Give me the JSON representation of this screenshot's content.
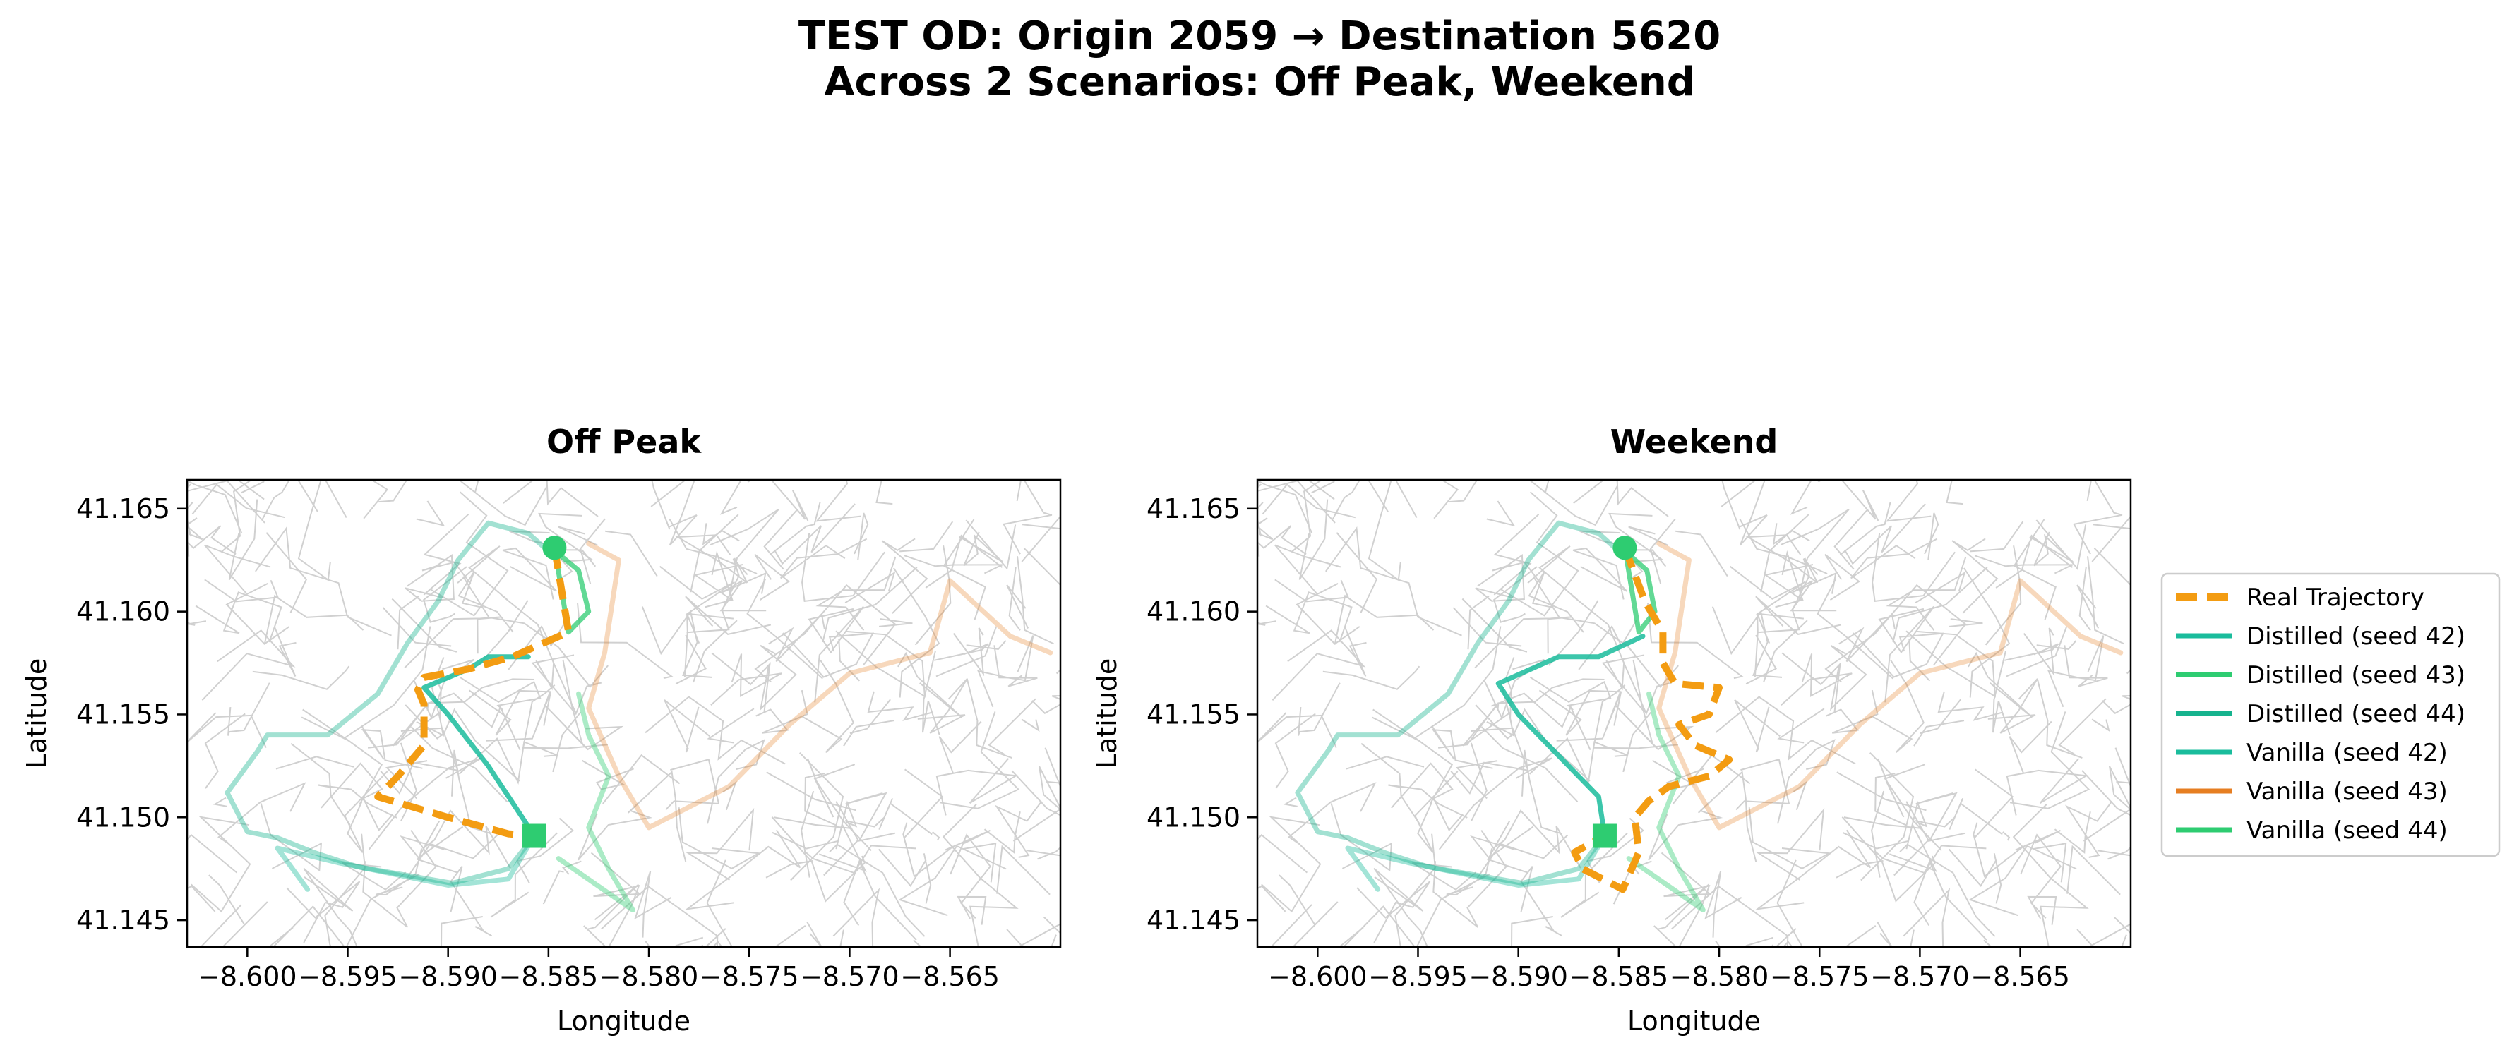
{
  "figure": {
    "title_line1": "TEST OD: Origin 2059 → Destination 5620",
    "title_line2": "Across 2 Scenarios: Off Peak, Weekend"
  },
  "colors": {
    "real": "#F39C12",
    "distilled_42": "#1ABC9C",
    "distilled_43": "#2ECC71",
    "distilled_44": "#16B38E",
    "vanilla_42": "#1ABC9C",
    "vanilla_43": "#E67E22",
    "vanilla_44": "#2ECC71",
    "origin": "#2ECC71",
    "destination": "#2ECC71",
    "road": "#BDBDBD"
  },
  "chart_data": [
    {
      "type": "line",
      "title": "Off Peak",
      "xlabel": "Longitude",
      "ylabel": "Latitude",
      "xlim": [
        -8.603,
        -8.5595
      ],
      "ylim": [
        41.1437,
        41.1664
      ],
      "xticks": [
        -8.6,
        -8.595,
        -8.59,
        -8.585,
        -8.58,
        -8.575,
        -8.57,
        -8.565
      ],
      "xticklabels": [
        "−8.600",
        "−8.595",
        "−8.590",
        "−8.585",
        "−8.580",
        "−8.575",
        "−8.570",
        "−8.565"
      ],
      "yticks": [
        41.145,
        41.15,
        41.155,
        41.16,
        41.165
      ],
      "yticklabels": [
        "41.145",
        "41.150",
        "41.155",
        "41.160",
        "41.165"
      ],
      "grid": false,
      "origin": {
        "lon": -8.5847,
        "lat": 41.1631
      },
      "destination": {
        "lon": -8.5857,
        "lat": 41.1491
      },
      "series": [
        {
          "key": "real",
          "style": "dashed",
          "points": [
            [
              -8.5847,
              41.1631
            ],
            [
              -8.584,
              41.159
            ],
            [
              -8.5868,
              41.1578
            ],
            [
              -8.589,
              41.1572
            ],
            [
              -8.5912,
              41.1568
            ],
            [
              -8.5915,
              41.1562
            ],
            [
              -8.5912,
              41.1555
            ],
            [
              -8.5912,
              41.1535
            ],
            [
              -8.5925,
              41.152
            ],
            [
              -8.5935,
              41.151
            ],
            [
              -8.59,
              41.15
            ],
            [
              -8.587,
              41.1492
            ],
            [
              -8.5857,
              41.1491
            ]
          ]
        },
        {
          "key": "distilled_42",
          "style": "solid",
          "points": [
            [
              -8.5857,
              41.1491
            ],
            [
              -8.588,
              41.1525
            ],
            [
              -8.59,
              41.155
            ],
            [
              -8.5912,
              41.1563
            ],
            [
              -8.589,
              41.1572
            ],
            [
              -8.588,
              41.1578
            ],
            [
              -8.586,
              41.1578
            ]
          ]
        },
        {
          "key": "distilled_43",
          "style": "solid",
          "points": [
            [
              -8.5847,
              41.1631
            ],
            [
              -8.584,
              41.159
            ],
            [
              -8.583,
              41.16
            ],
            [
              -8.5835,
              41.162
            ],
            [
              -8.585,
              41.1632
            ]
          ]
        },
        {
          "key": "distilled_44",
          "style": "solid",
          "points": [
            [
              -8.5857,
              41.1491
            ],
            [
              -8.587,
              41.1475
            ],
            [
              -8.5898,
              41.1468
            ],
            [
              -8.5945,
              41.1476
            ],
            [
              -8.5967,
              41.1483
            ],
            [
              -8.5985,
              41.149
            ],
            [
              -8.6,
              41.1493
            ],
            [
              -8.601,
              41.1512
            ],
            [
              -8.5995,
              41.1532
            ],
            [
              -8.599,
              41.154
            ],
            [
              -8.596,
              41.154
            ],
            [
              -8.5935,
              41.156
            ],
            [
              -8.592,
              41.1585
            ],
            [
              -8.5905,
              41.1605
            ],
            [
              -8.5895,
              41.1625
            ],
            [
              -8.588,
              41.1643
            ],
            [
              -8.586,
              41.1638
            ],
            [
              -8.5852,
              41.1631
            ]
          ]
        },
        {
          "key": "vanilla_42",
          "style": "solid",
          "points": [
            [
              -8.5857,
              41.1491
            ],
            [
              -8.587,
              41.147
            ],
            [
              -8.59,
              41.1467
            ],
            [
              -8.5955,
              41.1478
            ],
            [
              -8.5985,
              41.1485
            ],
            [
              -8.597,
              41.1465
            ]
          ]
        },
        {
          "key": "vanilla_43",
          "style": "solid",
          "points": [
            [
              -8.583,
              41.1633
            ],
            [
              -8.5815,
              41.1625
            ],
            [
              -8.5822,
              41.158
            ],
            [
              -8.583,
              41.1553
            ],
            [
              -8.5815,
              41.152
            ],
            [
              -8.58,
              41.1495
            ],
            [
              -8.576,
              41.1515
            ],
            [
              -8.573,
              41.1545
            ],
            [
              -8.57,
              41.157
            ],
            [
              -8.566,
              41.158
            ],
            [
              -8.565,
              41.1615
            ],
            [
              -8.562,
              41.1588
            ],
            [
              -8.56,
              41.158
            ]
          ]
        },
        {
          "key": "vanilla_44",
          "style": "solid",
          "points": [
            [
              -8.5845,
              41.148
            ],
            [
              -8.5808,
              41.1455
            ],
            [
              -8.582,
              41.1475
            ],
            [
              -8.583,
              41.1495
            ],
            [
              -8.582,
              41.152
            ],
            [
              -8.583,
              41.154
            ],
            [
              -8.5835,
              41.156
            ]
          ]
        }
      ]
    },
    {
      "type": "line",
      "title": "Weekend",
      "xlabel": "Longitude",
      "ylabel": "Latitude",
      "xlim": [
        -8.603,
        -8.5595
      ],
      "ylim": [
        41.1437,
        41.1664
      ],
      "xticks": [
        -8.6,
        -8.595,
        -8.59,
        -8.585,
        -8.58,
        -8.575,
        -8.57,
        -8.565
      ],
      "xticklabels": [
        "−8.600",
        "−8.595",
        "−8.590",
        "−8.585",
        "−8.580",
        "−8.575",
        "−8.570",
        "−8.565"
      ],
      "yticks": [
        41.145,
        41.15,
        41.155,
        41.16,
        41.165
      ],
      "yticklabels": [
        "41.145",
        "41.150",
        "41.155",
        "41.160",
        "41.165"
      ],
      "grid": false,
      "origin": {
        "lon": -8.5847,
        "lat": 41.1631
      },
      "destination": {
        "lon": -8.5857,
        "lat": 41.1491
      },
      "series": [
        {
          "key": "real",
          "style": "dashed",
          "points": [
            [
              -8.5847,
              41.1631
            ],
            [
              -8.5837,
              41.1605
            ],
            [
              -8.5828,
              41.159
            ],
            [
              -8.5828,
              41.1575
            ],
            [
              -8.5822,
              41.1565
            ],
            [
              -8.58,
              41.1563
            ],
            [
              -8.5805,
              41.155
            ],
            [
              -8.582,
              41.1545
            ],
            [
              -8.5812,
              41.1535
            ],
            [
              -8.5795,
              41.1528
            ],
            [
              -8.5805,
              41.152
            ],
            [
              -8.5825,
              41.1515
            ],
            [
              -8.5835,
              41.1508
            ],
            [
              -8.5842,
              41.15
            ],
            [
              -8.584,
              41.1483
            ],
            [
              -8.5848,
              41.1465
            ],
            [
              -8.5868,
              41.1475
            ],
            [
              -8.5872,
              41.1483
            ],
            [
              -8.5857,
              41.1491
            ]
          ]
        },
        {
          "key": "distilled_42",
          "style": "solid",
          "points": [
            [
              -8.5857,
              41.1491
            ],
            [
              -8.586,
              41.151
            ],
            [
              -8.588,
              41.153
            ],
            [
              -8.59,
              41.155
            ],
            [
              -8.591,
              41.1565
            ],
            [
              -8.588,
              41.1578
            ],
            [
              -8.586,
              41.1578
            ],
            [
              -8.5838,
              41.1588
            ]
          ]
        },
        {
          "key": "distilled_43",
          "style": "solid",
          "points": [
            [
              -8.5847,
              41.1631
            ],
            [
              -8.584,
              41.159
            ],
            [
              -8.5832,
              41.16
            ],
            [
              -8.5836,
              41.162
            ],
            [
              -8.585,
              41.1632
            ]
          ]
        },
        {
          "key": "distilled_44",
          "style": "solid",
          "points": [
            [
              -8.5857,
              41.1491
            ],
            [
              -8.587,
              41.1475
            ],
            [
              -8.5898,
              41.1468
            ],
            [
              -8.5945,
              41.1476
            ],
            [
              -8.5967,
              41.1483
            ],
            [
              -8.5985,
              41.149
            ],
            [
              -8.6,
              41.1493
            ],
            [
              -8.601,
              41.1512
            ],
            [
              -8.5995,
              41.1532
            ],
            [
              -8.599,
              41.154
            ],
            [
              -8.596,
              41.154
            ],
            [
              -8.5935,
              41.156
            ],
            [
              -8.592,
              41.1585
            ],
            [
              -8.5905,
              41.1605
            ],
            [
              -8.5895,
              41.1625
            ],
            [
              -8.588,
              41.1643
            ],
            [
              -8.586,
              41.1638
            ],
            [
              -8.5852,
              41.1631
            ]
          ]
        },
        {
          "key": "vanilla_42",
          "style": "solid",
          "points": [
            [
              -8.5857,
              41.1491
            ],
            [
              -8.587,
              41.147
            ],
            [
              -8.59,
              41.1467
            ],
            [
              -8.5955,
              41.1478
            ],
            [
              -8.5985,
              41.1485
            ],
            [
              -8.597,
              41.1465
            ]
          ]
        },
        {
          "key": "vanilla_43",
          "style": "solid",
          "points": [
            [
              -8.583,
              41.1633
            ],
            [
              -8.5815,
              41.1625
            ],
            [
              -8.5822,
              41.158
            ],
            [
              -8.583,
              41.1553
            ],
            [
              -8.5815,
              41.152
            ],
            [
              -8.58,
              41.1495
            ],
            [
              -8.576,
              41.1515
            ],
            [
              -8.573,
              41.1545
            ],
            [
              -8.57,
              41.157
            ],
            [
              -8.566,
              41.158
            ],
            [
              -8.565,
              41.1615
            ],
            [
              -8.562,
              41.1588
            ],
            [
              -8.56,
              41.158
            ]
          ]
        },
        {
          "key": "vanilla_44",
          "style": "solid",
          "points": [
            [
              -8.5845,
              41.148
            ],
            [
              -8.5808,
              41.1455
            ],
            [
              -8.582,
              41.1475
            ],
            [
              -8.583,
              41.1495
            ],
            [
              -8.582,
              41.152
            ],
            [
              -8.583,
              41.154
            ],
            [
              -8.5835,
              41.156
            ]
          ]
        }
      ]
    }
  ],
  "legend": {
    "placement": "right",
    "entries": [
      {
        "key": "real",
        "label": "Real Trajectory",
        "style": "dashed"
      },
      {
        "key": "distilled_42",
        "label": "Distilled (seed 42)",
        "style": "solid"
      },
      {
        "key": "distilled_43",
        "label": "Distilled (seed 43)",
        "style": "solid"
      },
      {
        "key": "distilled_44",
        "label": "Distilled (seed 44)",
        "style": "solid"
      },
      {
        "key": "vanilla_42",
        "label": "Vanilla (seed 42)",
        "style": "solid"
      },
      {
        "key": "vanilla_43",
        "label": "Vanilla (seed 43)",
        "style": "solid"
      },
      {
        "key": "vanilla_44",
        "label": "Vanilla (seed 44)",
        "style": "solid"
      }
    ]
  }
}
